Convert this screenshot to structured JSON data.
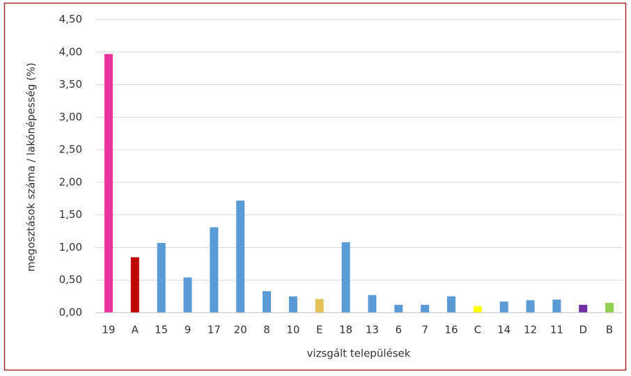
{
  "chart_data": {
    "type": "bar",
    "x_label": "vizsgált települések",
    "y_label": "megosztások száma / lakónépesség (%)",
    "categories": [
      "19",
      "A",
      "15",
      "9",
      "17",
      "20",
      "8",
      "10",
      "E",
      "18",
      "13",
      "6",
      "7",
      "16",
      "C",
      "14",
      "12",
      "11",
      "D",
      "B"
    ],
    "values": [
      3.97,
      0.85,
      1.07,
      0.54,
      1.31,
      1.72,
      0.33,
      0.25,
      0.21,
      1.08,
      0.27,
      0.12,
      0.12,
      0.25,
      0.1,
      0.17,
      0.19,
      0.2,
      0.12,
      0.15
    ],
    "colors": [
      "#e8339c",
      "#c00000",
      "#5b9bd5",
      "#5b9bd5",
      "#5b9bd5",
      "#5b9bd5",
      "#5b9bd5",
      "#5b9bd5",
      "#e6c157",
      "#5b9bd5",
      "#5b9bd5",
      "#5b9bd5",
      "#5b9bd5",
      "#5b9bd5",
      "#ffff00",
      "#5b9bd5",
      "#5b9bd5",
      "#5b9bd5",
      "#7030a0",
      "#92d050"
    ],
    "ylim": [
      0,
      4.5
    ],
    "yticks": [
      {
        "value": 0,
        "label": "0,00"
      },
      {
        "value": 0.5,
        "label": "0,50"
      },
      {
        "value": 1,
        "label": "1,00"
      },
      {
        "value": 1.5,
        "label": "1,50"
      },
      {
        "value": 2,
        "label": "2,00"
      },
      {
        "value": 2.5,
        "label": "2,50"
      },
      {
        "value": 3,
        "label": "3,00"
      },
      {
        "value": 3.5,
        "label": "3,50"
      },
      {
        "value": 4,
        "label": "4,00"
      },
      {
        "value": 4.5,
        "label": "4,50"
      }
    ],
    "grid": true
  }
}
